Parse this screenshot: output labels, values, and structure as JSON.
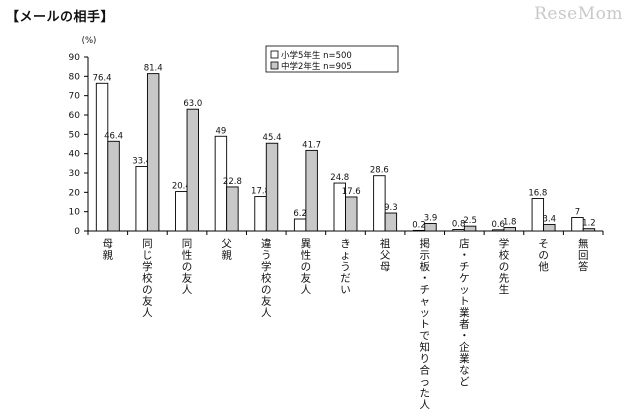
{
  "header": {
    "title": "【メールの相手】",
    "watermark": "ReseMom"
  },
  "chart_data": {
    "type": "bar",
    "title": "メールの相手",
    "ylabel": "(%)",
    "ylim": [
      0,
      90
    ],
    "yticks": [
      0,
      10,
      20,
      30,
      40,
      50,
      60,
      70,
      80,
      90
    ],
    "grid": false,
    "legend_position": "top-center",
    "categories": [
      "母親",
      "同じ学校の友人",
      "同性の友人",
      "父親",
      "違う学校の友人",
      "異性の友人",
      "きょうだい",
      "祖父母",
      "掲示板・チャットで知り合った人",
      "店・チケット業者・企業など",
      "学校の先生",
      "その他",
      "無回答"
    ],
    "series": [
      {
        "name": "小学5年生 n=500",
        "color": "#ffffff",
        "values": [
          76.4,
          33.4,
          20.4,
          49,
          17.8,
          6.2,
          24.8,
          28.6,
          0.2,
          0.8,
          0.6,
          16.8,
          7
        ],
        "labels": [
          "76.4",
          "33.4",
          "20.4",
          "49",
          "17.8",
          "6.2",
          "24.8",
          "28.6",
          "0.2",
          "0.8",
          "0.6",
          "16.8",
          "7"
        ]
      },
      {
        "name": "中学2年生 n=905",
        "color": "#c8c8c8",
        "values": [
          46.4,
          81.4,
          63.0,
          22.8,
          45.4,
          41.7,
          17.6,
          9.3,
          3.9,
          2.5,
          1.8,
          3.4,
          1.2
        ],
        "labels": [
          "46.4",
          "81.4",
          "63.0",
          "22.8",
          "45.4",
          "41.7",
          "17.6",
          "9.3",
          "3.9",
          "2.5",
          "1.8",
          "3.4",
          "1.2"
        ]
      }
    ]
  }
}
